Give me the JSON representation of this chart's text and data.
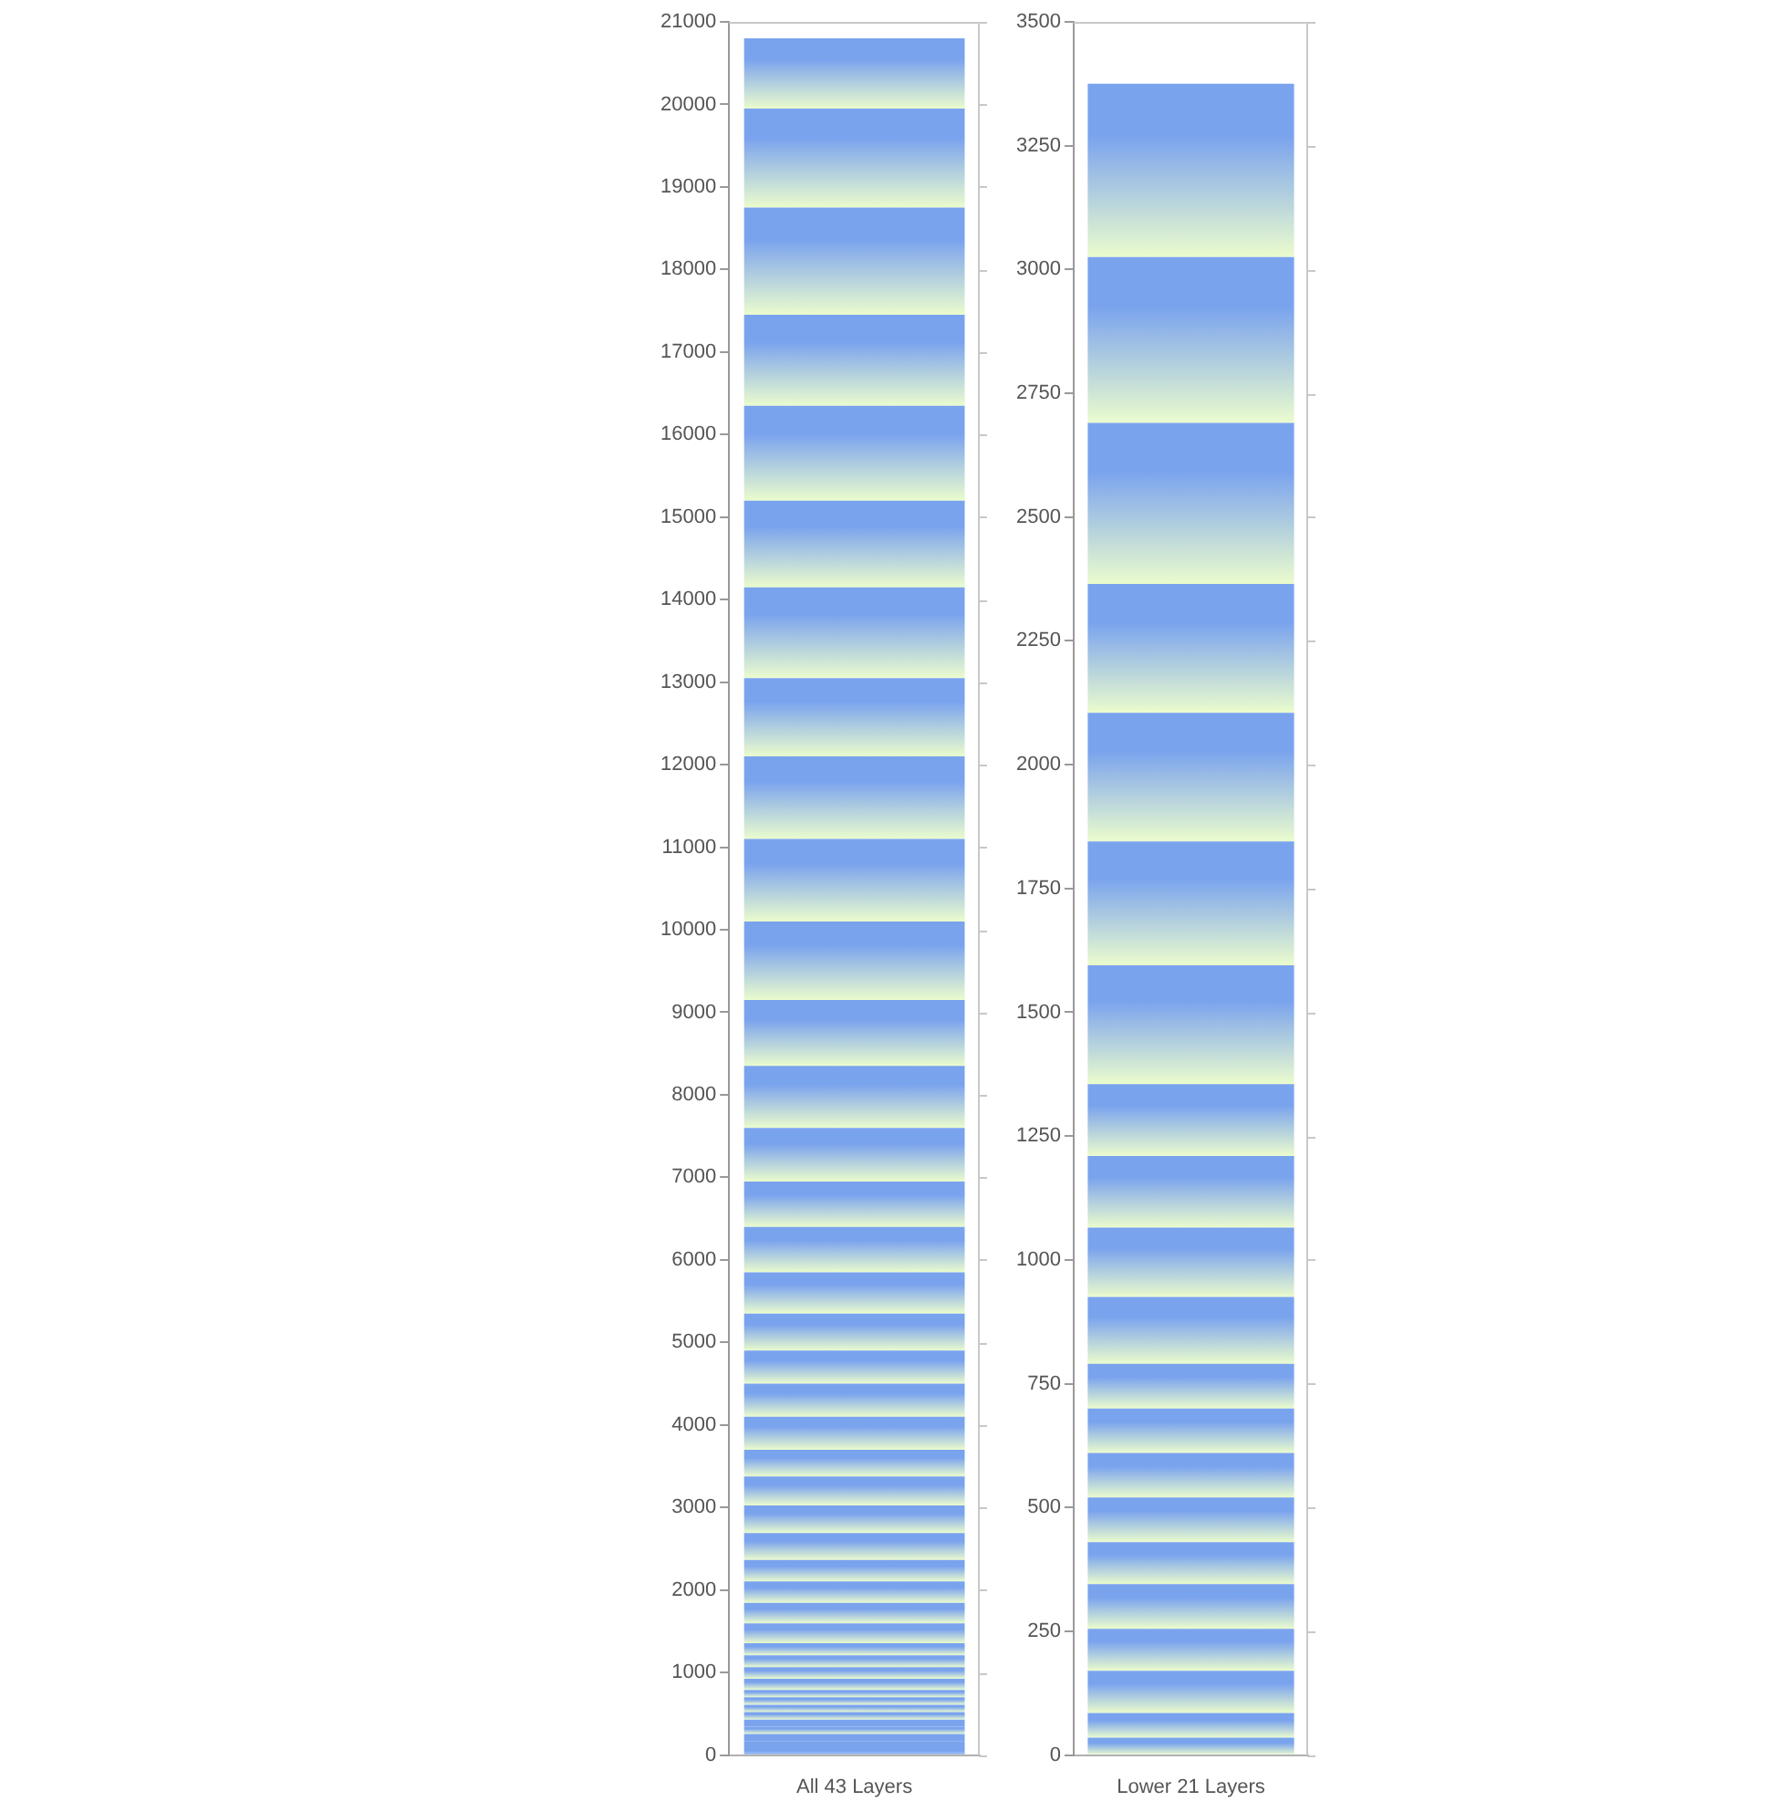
{
  "chart_data": [
    {
      "type": "bar",
      "stacked": true,
      "categories": [
        "All 43 Layers"
      ],
      "ylim": [
        0,
        21000
      ],
      "yticks": [
        0,
        1000,
        2000,
        3000,
        4000,
        5000,
        6000,
        7000,
        8000,
        9000,
        10000,
        11000,
        12000,
        13000,
        14000,
        15000,
        16000,
        17000,
        18000,
        19000,
        20000,
        21000
      ],
      "grid": false,
      "legend": false,
      "series": [
        {
          "color": "#7aa3ee",
          "values": [
            35
          ]
        },
        {
          "color": "#7aa3ee",
          "values": [
            50
          ]
        },
        {
          "color": "#7aa3ee",
          "values": [
            85
          ]
        },
        {
          "color": "#7aa3ee",
          "values": [
            85
          ]
        },
        {
          "color": "#7aa3ee",
          "values": [
            90
          ]
        },
        {
          "color": "#7aa3ee",
          "values": [
            85
          ]
        },
        {
          "color": "#7aa3ee",
          "values": [
            90
          ]
        },
        {
          "color": "#7aa3ee",
          "values": [
            90
          ]
        },
        {
          "color": "#7aa3ee",
          "values": [
            90
          ]
        },
        {
          "color": "#7aa3ee",
          "values": [
            90
          ]
        },
        {
          "color": "#7aa3ee",
          "values": [
            135
          ]
        },
        {
          "color": "#7aa3ee",
          "values": [
            140
          ]
        },
        {
          "color": "#7aa3ee",
          "values": [
            145
          ]
        },
        {
          "color": "#7aa3ee",
          "values": [
            145
          ]
        },
        {
          "color": "#7aa3ee",
          "values": [
            240
          ]
        },
        {
          "color": "#7aa3ee",
          "values": [
            250
          ]
        },
        {
          "color": "#7aa3ee",
          "values": [
            260
          ]
        },
        {
          "color": "#7aa3ee",
          "values": [
            260
          ]
        },
        {
          "color": "#7aa3ee",
          "values": [
            325
          ]
        },
        {
          "color": "#7aa3ee",
          "values": [
            335
          ]
        },
        {
          "color": "#7aa3ee",
          "values": [
            350
          ]
        },
        {
          "color": "#7aa3ee",
          "values": [
            325
          ]
        },
        {
          "color": "#7aa3ee",
          "values": [
            400
          ]
        },
        {
          "color": "#7aa3ee",
          "values": [
            400
          ]
        },
        {
          "color": "#7aa3ee",
          "values": [
            400
          ]
        },
        {
          "color": "#7aa3ee",
          "values": [
            450
          ]
        },
        {
          "color": "#7aa3ee",
          "values": [
            500
          ]
        },
        {
          "color": "#7aa3ee",
          "values": [
            550
          ]
        },
        {
          "color": "#7aa3ee",
          "values": [
            550
          ]
        },
        {
          "color": "#7aa3ee",
          "values": [
            650
          ]
        },
        {
          "color": "#7aa3ee",
          "values": [
            750
          ]
        },
        {
          "color": "#7aa3ee",
          "values": [
            800
          ]
        },
        {
          "color": "#7aa3ee",
          "values": [
            950
          ]
        },
        {
          "color": "#7aa3ee",
          "values": [
            1000
          ]
        },
        {
          "color": "#7aa3ee",
          "values": [
            1000
          ]
        },
        {
          "color": "#7aa3ee",
          "values": [
            950
          ]
        },
        {
          "color": "#7aa3ee",
          "values": [
            1100
          ]
        },
        {
          "color": "#7aa3ee",
          "values": [
            1050
          ]
        },
        {
          "color": "#7aa3ee",
          "values": [
            1150
          ]
        },
        {
          "color": "#7aa3ee",
          "values": [
            1100
          ]
        },
        {
          "color": "#7aa3ee",
          "values": [
            1300
          ]
        },
        {
          "color": "#7aa3ee",
          "values": [
            1200
          ]
        },
        {
          "color": "#7aa3ee",
          "values": [
            850
          ]
        }
      ]
    },
    {
      "type": "bar",
      "stacked": true,
      "categories": [
        "Lower 21 Layers"
      ],
      "ylim": [
        0,
        3500
      ],
      "yticks": [
        0,
        250,
        500,
        750,
        1000,
        1250,
        1500,
        1750,
        2000,
        2250,
        2500,
        2750,
        3000,
        3250,
        3500
      ],
      "grid": false,
      "legend": false,
      "series": [
        {
          "color": "#7aa3ee",
          "values": [
            35
          ]
        },
        {
          "color": "#7aa3ee",
          "values": [
            50
          ]
        },
        {
          "color": "#7aa3ee",
          "values": [
            85
          ]
        },
        {
          "color": "#7aa3ee",
          "values": [
            85
          ]
        },
        {
          "color": "#7aa3ee",
          "values": [
            90
          ]
        },
        {
          "color": "#7aa3ee",
          "values": [
            85
          ]
        },
        {
          "color": "#7aa3ee",
          "values": [
            90
          ]
        },
        {
          "color": "#7aa3ee",
          "values": [
            90
          ]
        },
        {
          "color": "#7aa3ee",
          "values": [
            90
          ]
        },
        {
          "color": "#7aa3ee",
          "values": [
            90
          ]
        },
        {
          "color": "#7aa3ee",
          "values": [
            135
          ]
        },
        {
          "color": "#7aa3ee",
          "values": [
            140
          ]
        },
        {
          "color": "#7aa3ee",
          "values": [
            145
          ]
        },
        {
          "color": "#7aa3ee",
          "values": [
            145
          ]
        },
        {
          "color": "#7aa3ee",
          "values": [
            240
          ]
        },
        {
          "color": "#7aa3ee",
          "values": [
            250
          ]
        },
        {
          "color": "#7aa3ee",
          "values": [
            260
          ]
        },
        {
          "color": "#7aa3ee",
          "values": [
            260
          ]
        },
        {
          "color": "#7aa3ee",
          "values": [
            325
          ]
        },
        {
          "color": "#7aa3ee",
          "values": [
            335
          ]
        },
        {
          "color": "#7aa3ee",
          "values": [
            350
          ]
        }
      ]
    }
  ]
}
